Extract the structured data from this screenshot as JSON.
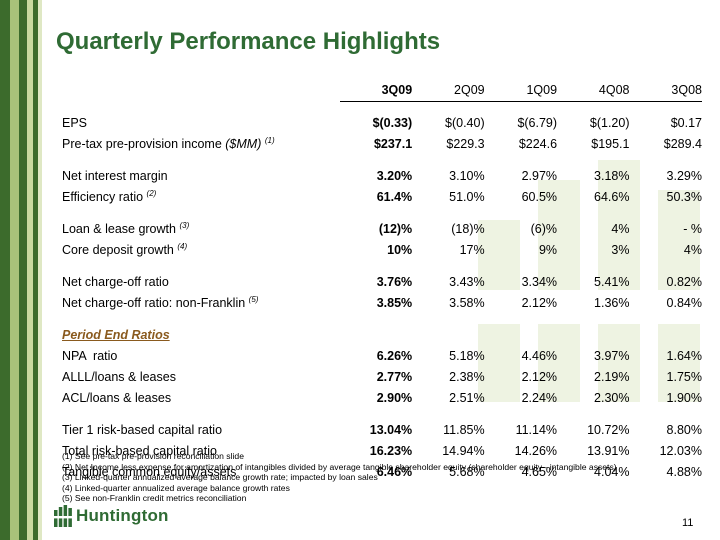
{
  "slide": {
    "title": "Quarterly Performance Highlights",
    "page_number": "11",
    "brand": "Huntington",
    "colors": {
      "title_green": "#2f6b34",
      "section_brown": "#8a5a1e",
      "stripe_dark": "#3c6b2c",
      "stripe_light": "#a9c27a"
    }
  },
  "table": {
    "columns": [
      "3Q09",
      "2Q09",
      "1Q09",
      "4Q08",
      "3Q08"
    ],
    "rows": [
      {
        "label": "EPS",
        "note": "",
        "values": [
          "$(0.33)",
          "$(0.40)",
          "$(6.79)",
          "$(1.20)",
          "$0.17"
        ]
      },
      {
        "label": "Pre-tax pre-provision income ",
        "label_italic": "($MM)",
        "note": "(1)",
        "values": [
          "$237.1",
          "$229.3",
          "$224.6",
          "$195.1",
          "$289.4"
        ]
      },
      {
        "label": "Net interest margin",
        "note": "",
        "values": [
          "3.20%",
          "3.10%",
          "2.97%",
          "3.18%",
          "3.29%"
        ]
      },
      {
        "label": "Efficiency ratio ",
        "note": "(2)",
        "values": [
          "61.4%",
          "51.0%",
          "60.5%",
          "64.6%",
          "50.3%"
        ]
      },
      {
        "label": "Loan & lease growth ",
        "note": "(3)",
        "values": [
          "(12)%",
          "(18)%",
          "(6)%",
          "4%",
          "- %"
        ]
      },
      {
        "label": "Core deposit growth ",
        "note": "(4)",
        "values": [
          "10%",
          "17%",
          "9%",
          "3%",
          "4%"
        ]
      },
      {
        "label": "Net charge-off ratio",
        "note": "",
        "values": [
          "3.76%",
          "3.43%",
          "3.34%",
          "5.41%",
          "0.82%"
        ]
      },
      {
        "label": "Net charge-off ratio: non-Franklin ",
        "note": "(5)",
        "values": [
          "3.85%",
          "3.58%",
          "2.12%",
          "1.36%",
          "0.84%"
        ]
      },
      {
        "label": "NPA  ratio",
        "note": "",
        "values": [
          "6.26%",
          "5.18%",
          "4.46%",
          "3.97%",
          "1.64%"
        ]
      },
      {
        "label": "ALLL/loans & leases",
        "note": "",
        "values": [
          "2.77%",
          "2.38%",
          "2.12%",
          "2.19%",
          "1.75%"
        ]
      },
      {
        "label": "ACL/loans & leases",
        "note": "",
        "values": [
          "2.90%",
          "2.51%",
          "2.24%",
          "2.30%",
          "1.90%"
        ]
      },
      {
        "label": "Tier 1 risk-based capital ratio",
        "note": "",
        "values": [
          "13.04%",
          "11.85%",
          "11.14%",
          "10.72%",
          "8.80%"
        ]
      },
      {
        "label": "Total risk-based capital ratio",
        "note": "",
        "values": [
          "16.23%",
          "14.94%",
          "14.26%",
          "13.91%",
          "12.03%"
        ]
      },
      {
        "label": "Tangible common equity/assets",
        "note": "",
        "values": [
          "6.46%",
          "5.68%",
          "4.65%",
          "4.04%",
          "4.88%"
        ]
      }
    ],
    "section_title": "Period End Ratios"
  },
  "footnotes": [
    "(1) See pre-tax pre-provision reconciliation slide",
    "(2) Net Income less expense for amortization of intangibles divided by average tangible shareholder equity (shareholder equity - intangible assets)",
    "(3) Linked-quarter annualized average balance growth rate; impacted by loan sales",
    "(4) Linked-quarter annualized average balance growth rates",
    "(5) See non-Franklin credit metrics reconciliation"
  ]
}
